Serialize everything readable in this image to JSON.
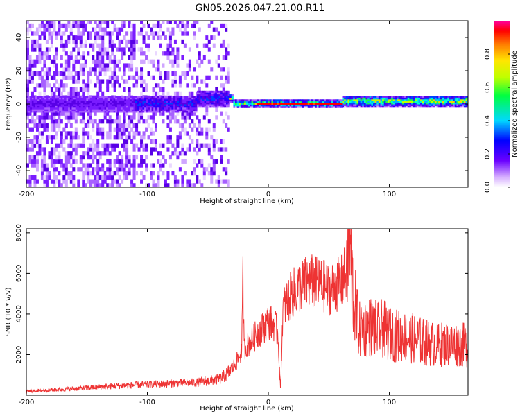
{
  "title": "GN05.2026.047.21.00.R11",
  "chart_data": [
    {
      "type": "heatmap",
      "xlabel": "Height of straight line (km)",
      "ylabel": "Frequency (Hz)",
      "xlim": [
        -200,
        165
      ],
      "ylim": [
        -50,
        50
      ],
      "xticks": [
        -200,
        -100,
        0,
        100
      ],
      "yticks": [
        -40,
        -20,
        0,
        20,
        40
      ],
      "colorbar": {
        "label": "Normalized spectral amplitude",
        "range": [
          0,
          1
        ],
        "ticks": [
          "0.0",
          "0.2",
          "0.4",
          "0.6",
          "0.8"
        ]
      },
      "grid": false
    },
    {
      "type": "line",
      "xlabel": "Height of straight line (km)",
      "ylabel": "SNR (10 * v/v)",
      "xlim": [
        -200,
        165
      ],
      "ylim": [
        0,
        8200
      ],
      "xticks": [
        -200,
        -100,
        0,
        100
      ],
      "yticks": [
        2000,
        4000,
        6000,
        8000
      ],
      "color": "#ee3333",
      "series": [
        {
          "x": [
            -200,
            -180,
            -160,
            -140,
            -120,
            -100,
            -80,
            -60,
            -50,
            -40,
            -35,
            -30,
            -25,
            -22,
            -21,
            -20,
            -15,
            -10,
            -5,
            0,
            5,
            8,
            10,
            12,
            15,
            20,
            25,
            30,
            35,
            40,
            45,
            50,
            55,
            60,
            65,
            67,
            70,
            75,
            80,
            85,
            90,
            95,
            100,
            110,
            120,
            130,
            140,
            150,
            160,
            165
          ],
          "y": [
            200,
            250,
            320,
            400,
            480,
            520,
            580,
            620,
            700,
            800,
            1000,
            1300,
            1800,
            2200,
            5700,
            2300,
            2600,
            3000,
            3300,
            3600,
            3500,
            3000,
            300,
            4200,
            4600,
            5000,
            5300,
            5500,
            5600,
            5500,
            5400,
            5200,
            5400,
            5500,
            6200,
            8000,
            5000,
            3200,
            3300,
            3400,
            3200,
            3300,
            3000,
            2900,
            2800,
            2600,
            2500,
            2500,
            2500,
            2400
          ]
        }
      ]
    }
  ]
}
